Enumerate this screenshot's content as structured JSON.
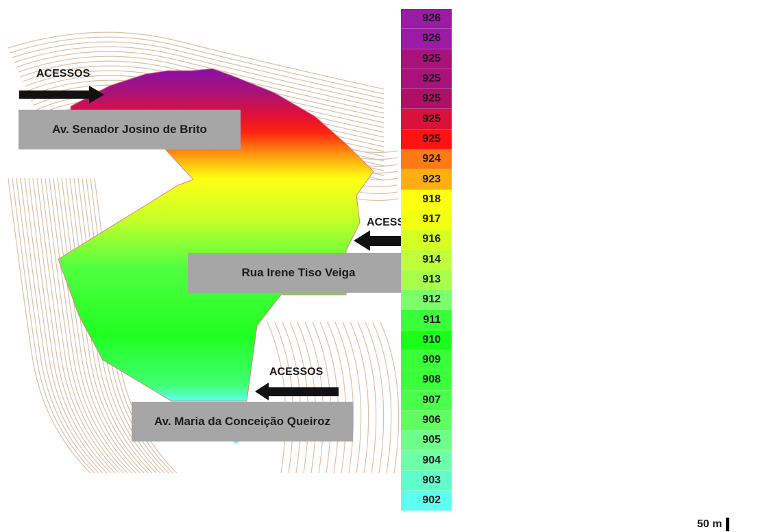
{
  "map": {
    "roads": {
      "north": "Av. Senador Josino de Brito",
      "east": "Rua Irene Tiso Veiga",
      "south": "Av. Maria da Conceição Queiroz"
    },
    "access_label": "ACESSOS",
    "access_label_east": "ACESSOS",
    "access_label_south": "ACESSOS",
    "scale_label": "50 m"
  },
  "legend": {
    "levels": [
      {
        "value": "926",
        "color": "#9b1aa6"
      },
      {
        "value": "926",
        "color": "#9b1aa6"
      },
      {
        "value": "925",
        "color": "#a8127a"
      },
      {
        "value": "925",
        "color": "#a8127a"
      },
      {
        "value": "925",
        "color": "#b00f66"
      },
      {
        "value": "925",
        "color": "#d8123a"
      },
      {
        "value": "925",
        "color": "#ff1212"
      },
      {
        "value": "924",
        "color": "#ff7a12"
      },
      {
        "value": "923",
        "color": "#ffae12"
      },
      {
        "value": "918",
        "color": "#ffff12"
      },
      {
        "value": "917",
        "color": "#f2ff12"
      },
      {
        "value": "916",
        "color": "#d6ff24"
      },
      {
        "value": "914",
        "color": "#bfff3a"
      },
      {
        "value": "913",
        "color": "#a8ff4a"
      },
      {
        "value": "912",
        "color": "#7cff6a"
      },
      {
        "value": "911",
        "color": "#38ff38"
      },
      {
        "value": "910",
        "color": "#1aff1a"
      },
      {
        "value": "909",
        "color": "#38ff38"
      },
      {
        "value": "908",
        "color": "#3aff3a"
      },
      {
        "value": "907",
        "color": "#4aff4a"
      },
      {
        "value": "906",
        "color": "#60ff60"
      },
      {
        "value": "905",
        "color": "#6eff8a"
      },
      {
        "value": "904",
        "color": "#6effaa"
      },
      {
        "value": "903",
        "color": "#5effcc"
      },
      {
        "value": "902",
        "color": "#5effee"
      }
    ]
  }
}
